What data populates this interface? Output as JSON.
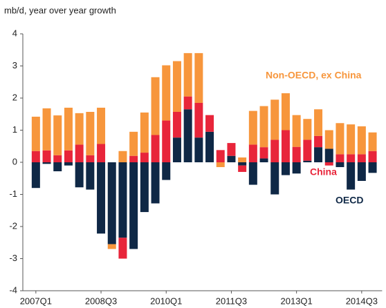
{
  "chart_data": {
    "type": "bar",
    "stacked": true,
    "title": "mb/d, year over year growth",
    "categories": [
      "2007Q1",
      null,
      null,
      null,
      null,
      null,
      "2008Q3",
      null,
      null,
      null,
      null,
      null,
      "2010Q1",
      null,
      null,
      null,
      null,
      null,
      "2011Q3",
      null,
      null,
      null,
      null,
      null,
      "2013Q1",
      null,
      null,
      null,
      null,
      null,
      "2014Q3",
      null
    ],
    "series": [
      {
        "name": "OECD",
        "color": "#0f2846",
        "values": [
          -0.8,
          -0.05,
          -0.28,
          -0.1,
          -0.78,
          -0.85,
          -2.22,
          -2.55,
          -2.35,
          -2.7,
          -1.55,
          -1.28,
          -0.55,
          0.77,
          1.65,
          0.77,
          0.95,
          0,
          0.2,
          -0.1,
          -0.7,
          0.12,
          -1.0,
          -0.4,
          -0.35,
          0.05,
          0.47,
          0.42,
          -0.15,
          -0.85,
          -0.58,
          -0.33
        ]
      },
      {
        "name": "China",
        "color": "#e8253a",
        "values": [
          0.35,
          0.37,
          0.22,
          0.37,
          0.55,
          0.22,
          0.57,
          0,
          -0.65,
          0.2,
          0.3,
          0.85,
          1.3,
          0.8,
          0.4,
          1.08,
          0.52,
          0.38,
          0.4,
          -0.2,
          0.55,
          0.35,
          0.7,
          1.0,
          0.48,
          0.65,
          0.35,
          -0.1,
          0.25,
          0.25,
          0.25,
          0.35
        ]
      },
      {
        "name": "Non-OECD, ex China",
        "color": "#f7963c",
        "values": [
          1.07,
          1.31,
          1.24,
          1.33,
          0.98,
          1.35,
          1.13,
          -0.15,
          0.35,
          0.75,
          1.25,
          1.8,
          1.72,
          1.58,
          1.35,
          1.55,
          0,
          -0.15,
          0,
          0.15,
          1.05,
          1.28,
          1.25,
          1.15,
          0.99,
          0.65,
          0.83,
          0.58,
          0.97,
          0.93,
          0.87,
          0.58
        ]
      }
    ],
    "ylim": [
      -4,
      4
    ],
    "yticks": [
      -4,
      -3,
      -2,
      -1,
      0,
      1,
      2,
      3,
      4
    ]
  }
}
